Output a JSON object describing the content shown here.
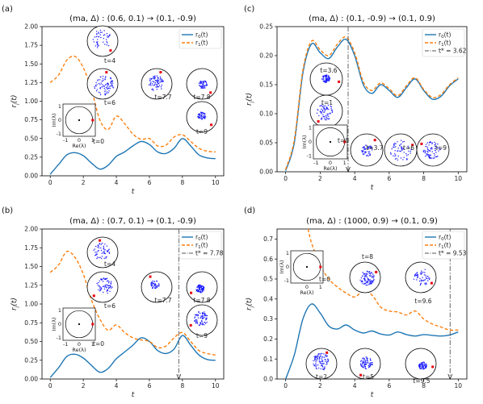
{
  "colors": {
    "r0": "#1f77b4",
    "r1": "#ff7f0e",
    "tstar": "#555555",
    "dot": "#1a1aff",
    "red": "#e8000b"
  },
  "chart_data": [
    {
      "panel_label": "(a)",
      "type": "line",
      "title": "(ma, Δ) : (0.6, 0.1) → (0.1, -0.9)",
      "xlabel": "t",
      "ylabel": "r_j(t)",
      "xlim": [
        -0.5,
        10.5
      ],
      "ylim": [
        0,
        2.0
      ],
      "xticks": [
        "0",
        "2",
        "4",
        "6",
        "8",
        "10"
      ],
      "yticks": [
        "0.00",
        "0.25",
        "0.50",
        "0.75",
        "1.00",
        "1.25",
        "1.50",
        "1.75",
        "2.00"
      ],
      "legend": {
        "position": "top-right",
        "entries": [
          "r_0(t)",
          "r_1(t)"
        ]
      },
      "series": [
        {
          "name": "r_0(t)",
          "style": "solid",
          "color": "r0",
          "x": [
            0,
            0.5,
            1,
            1.5,
            2,
            2.5,
            3,
            3.5,
            4,
            4.5,
            5,
            5.5,
            6,
            6.5,
            7,
            7.5,
            8,
            8.5,
            9,
            9.5,
            10
          ],
          "y": [
            0.02,
            0.15,
            0.28,
            0.31,
            0.27,
            0.17,
            0.09,
            0.14,
            0.26,
            0.32,
            0.4,
            0.46,
            0.42,
            0.32,
            0.3,
            0.37,
            0.5,
            0.4,
            0.28,
            0.24,
            0.23
          ]
        },
        {
          "name": "r_1(t)",
          "style": "dashed",
          "color": "r1",
          "x": [
            0,
            0.5,
            1,
            1.5,
            2,
            2.5,
            3,
            3.5,
            4,
            4.5,
            5,
            5.5,
            6,
            6.5,
            7,
            7.5,
            8,
            8.5,
            9,
            9.5,
            10
          ],
          "y": [
            1.25,
            1.35,
            1.55,
            1.6,
            1.45,
            1.15,
            0.75,
            0.62,
            0.8,
            0.7,
            0.56,
            0.49,
            0.5,
            0.4,
            0.41,
            0.52,
            0.55,
            0.46,
            0.37,
            0.33,
            0.32
          ]
        }
      ],
      "insets": [
        {
          "label": "t=4"
        },
        {
          "label": "t=6"
        },
        {
          "label": "t=7.7"
        },
        {
          "label": "t=7.8"
        },
        {
          "label": "t=9"
        }
      ],
      "axes_inset": {
        "label": "t=0",
        "xlabel": "Re(λ)",
        "ylabel": "Im(λ)",
        "xticks": [
          "-1",
          "0",
          "1"
        ],
        "yticks": [
          "-1",
          "0",
          "1"
        ]
      }
    },
    {
      "panel_label": "(b)",
      "type": "line",
      "title": "(ma, Δ) : (0.7, 0.1) → (0.1, -0.9)",
      "xlabel": "t",
      "ylabel": "r_j(t)",
      "xlim": [
        -0.5,
        10.5
      ],
      "ylim": [
        0,
        2.0
      ],
      "xticks": [
        "0",
        "2",
        "4",
        "6",
        "8",
        "10"
      ],
      "yticks": [
        "0.00",
        "0.25",
        "0.50",
        "0.75",
        "1.00",
        "1.25",
        "1.50",
        "1.75",
        "2.00"
      ],
      "legend": {
        "position": "top-right",
        "entries": [
          "r_0(t)",
          "r_1(t)",
          "t* = 7.78"
        ]
      },
      "tstar": 7.78,
      "series": [
        {
          "name": "r_0(t)",
          "style": "solid",
          "color": "r0",
          "x": [
            0,
            0.5,
            1,
            1.5,
            2,
            2.5,
            3,
            3.5,
            4,
            4.5,
            5,
            5.5,
            6,
            6.5,
            7,
            7.5,
            8,
            8.5,
            9,
            9.5,
            10
          ],
          "y": [
            0.02,
            0.15,
            0.3,
            0.33,
            0.28,
            0.18,
            0.09,
            0.14,
            0.27,
            0.36,
            0.45,
            0.55,
            0.5,
            0.38,
            0.34,
            0.4,
            0.58,
            0.45,
            0.32,
            0.26,
            0.25
          ]
        },
        {
          "name": "r_1(t)",
          "style": "dashed",
          "color": "r1",
          "x": [
            0,
            0.5,
            1,
            1.5,
            2,
            2.5,
            3,
            3.5,
            4,
            4.5,
            5,
            5.5,
            6,
            6.5,
            7,
            7.5,
            8,
            8.5,
            9,
            9.5,
            10
          ],
          "y": [
            1.42,
            1.52,
            1.7,
            1.62,
            1.4,
            1.05,
            0.8,
            0.65,
            0.72,
            0.62,
            0.55,
            0.52,
            0.5,
            0.42,
            0.44,
            0.55,
            0.62,
            0.5,
            0.38,
            0.34,
            0.32
          ]
        }
      ],
      "insets": [
        {
          "label": "t=4"
        },
        {
          "label": "t=6"
        },
        {
          "label": "t=7.7"
        },
        {
          "label": "t=7.8"
        },
        {
          "label": "t=9"
        }
      ],
      "axes_inset": {
        "label": "t=0",
        "xlabel": "Re(λ)",
        "ylabel": "Im(λ)",
        "xticks": [
          "-1",
          "0",
          "1"
        ],
        "yticks": [
          "-1",
          "0",
          "1"
        ]
      }
    },
    {
      "panel_label": "(c)",
      "type": "line",
      "title": "(ma, Δ) : (0.1, -0.9) → (0.1, 0.9)",
      "xlabel": "t",
      "ylabel": "r_j(t)",
      "xlim": [
        -0.5,
        10.5
      ],
      "ylim": [
        0,
        0.25
      ],
      "xticks": [
        "0",
        "2",
        "4",
        "6",
        "8",
        "10"
      ],
      "yticks": [
        "0.00",
        "0.05",
        "0.10",
        "0.15",
        "0.20",
        "0.25"
      ],
      "legend": {
        "position": "top-right",
        "entries": [
          "r_0(t)",
          "r_1(t)",
          "t* = 3.62"
        ]
      },
      "tstar": 3.62,
      "series": [
        {
          "name": "r_0(t)",
          "style": "solid",
          "color": "r0",
          "x": [
            0,
            0.5,
            1,
            1.5,
            2,
            2.5,
            3,
            3.5,
            4,
            4.5,
            5,
            5.5,
            6,
            6.5,
            7,
            7.5,
            8,
            8.5,
            9,
            9.5,
            10
          ],
          "y": [
            0.002,
            0.05,
            0.17,
            0.22,
            0.205,
            0.195,
            0.215,
            0.228,
            0.2,
            0.15,
            0.135,
            0.15,
            0.14,
            0.128,
            0.145,
            0.16,
            0.14,
            0.125,
            0.13,
            0.148,
            0.16
          ]
        },
        {
          "name": "r_1(t)",
          "style": "dashed",
          "color": "r1",
          "x": [
            0,
            0.5,
            1,
            1.5,
            2,
            2.5,
            3,
            3.5,
            4,
            4.5,
            5,
            5.5,
            6,
            6.5,
            7,
            7.5,
            8,
            8.5,
            9,
            9.5,
            10
          ],
          "y": [
            0.004,
            0.055,
            0.175,
            0.225,
            0.21,
            0.2,
            0.22,
            0.232,
            0.205,
            0.155,
            0.14,
            0.153,
            0.143,
            0.131,
            0.148,
            0.162,
            0.142,
            0.128,
            0.133,
            0.15,
            0.162
          ]
        }
      ],
      "insets": [
        {
          "label": "t=3.6"
        },
        {
          "label": "t=1"
        },
        {
          "label": "t=3.7"
        },
        {
          "label": "t=6"
        },
        {
          "label": "t=9"
        }
      ],
      "axes_inset": {
        "label": "t=0",
        "xlabel": "Re(λ)",
        "ylabel": "Im(λ)",
        "xticks": [
          "-1",
          "0",
          "1"
        ],
        "yticks": [
          "-1",
          "0",
          "1"
        ]
      }
    },
    {
      "panel_label": "(d)",
      "type": "line",
      "title": "(ma, Δ) : (1000, 0.9) → (0.1, 0.9)",
      "xlabel": "t",
      "ylabel": "r_j(t)",
      "xlim": [
        -0.5,
        10.5
      ],
      "ylim": [
        0,
        0.75
      ],
      "xticks": [
        "0",
        "2",
        "4",
        "6",
        "8",
        "10"
      ],
      "yticks": [
        "0.0",
        "0.1",
        "0.2",
        "0.3",
        "0.4",
        "0.5",
        "0.6",
        "0.7"
      ],
      "legend": {
        "position": "top-right",
        "entries": [
          "r_0(t)",
          "r_1(t)",
          "t* = 9.53"
        ]
      },
      "tstar": 9.53,
      "series": [
        {
          "name": "r_0(t)",
          "style": "solid",
          "color": "r0",
          "x": [
            0,
            0.5,
            1,
            1.5,
            2,
            2.5,
            3,
            3.5,
            4,
            4.5,
            5,
            5.5,
            6,
            6.5,
            7,
            7.5,
            8,
            8.5,
            9,
            9.5,
            10
          ],
          "y": [
            0.0,
            0.12,
            0.3,
            0.375,
            0.33,
            0.265,
            0.25,
            0.27,
            0.245,
            0.23,
            0.24,
            0.225,
            0.22,
            0.235,
            0.222,
            0.215,
            0.222,
            0.218,
            0.215,
            0.22,
            0.235
          ]
        },
        {
          "name": "r_1(t)",
          "style": "dashed",
          "color": "r1",
          "x": [
            1.3,
            1.5,
            2,
            2.5,
            3,
            3.5,
            4,
            4.5,
            5,
            5.5,
            6,
            6.5,
            7,
            7.5,
            8,
            8.5,
            9,
            9.5,
            10
          ],
          "y": [
            0.75,
            0.68,
            0.57,
            0.5,
            0.46,
            0.43,
            0.41,
            0.44,
            0.42,
            0.36,
            0.34,
            0.335,
            0.32,
            0.34,
            0.3,
            0.275,
            0.26,
            0.245,
            0.245
          ]
        }
      ],
      "insets": [
        {
          "label": "t=8"
        },
        {
          "label": "t=9.6"
        },
        {
          "label": "t=2"
        },
        {
          "label": "t=5"
        },
        {
          "label": "t=9.5"
        }
      ],
      "axes_inset": {
        "label": "t=0",
        "xlabel": "Re(λ)",
        "ylabel": "Im(λ)",
        "xticks": [
          "0",
          "1"
        ],
        "yticks": [
          "-1",
          "0",
          "1"
        ]
      }
    }
  ]
}
